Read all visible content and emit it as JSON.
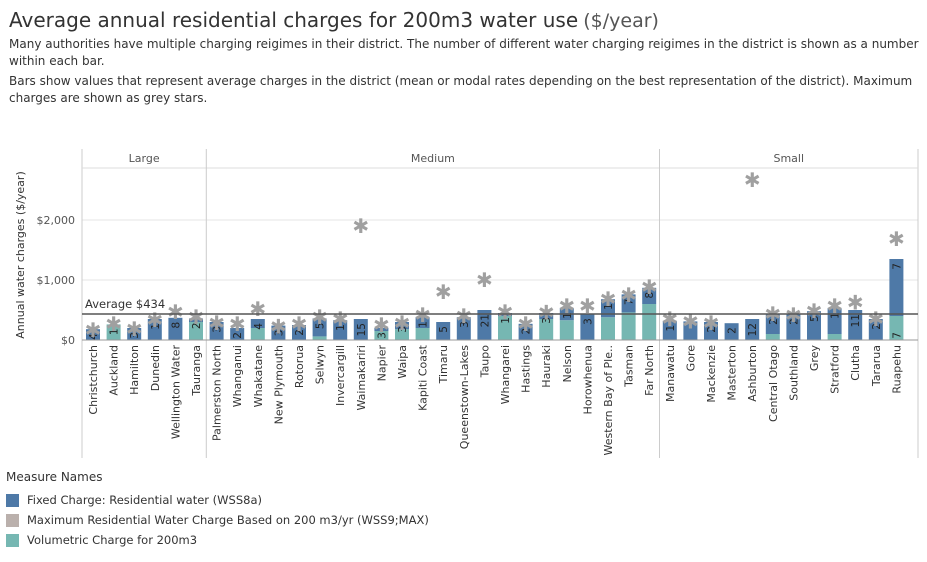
{
  "header": {
    "title": "Average annual residential charges for 200m3  water use",
    "title_unit": "($/year)",
    "subtitle_1": "Many authorities have multiple charging reigimes in their district. The number of different water charging reigimes in the district is shown as a number within each bar.",
    "subtitle_2": "Bars show values that represent average charges in the district (mean or modal rates depending on the best representation of the district). Maximum charges are shown as grey stars."
  },
  "legend": {
    "title": "Measure Names",
    "items": [
      {
        "label": "Fixed Charge: Residential water (WSS8a)",
        "color": "#4e79a7"
      },
      {
        "label": "Maximum Residential Water Charge Based on 200 m3/yr (WSS9;MAX)",
        "color": "#bab0ac"
      },
      {
        "label": "Volumetric Charge for 200m3",
        "color": "#76b7b2"
      }
    ]
  },
  "colors": {
    "fixed": "#4e79a7",
    "volumetric": "#76b7b2",
    "max_star": "#a0a0a0",
    "reference_line": "#555555",
    "grid": "#e6e6e6"
  },
  "chart_data": {
    "type": "bar",
    "stacked": true,
    "ylabel": "Annual water charges ($/year)",
    "ylim": [
      0,
      2800
    ],
    "yticks": [
      0,
      1000,
      2000
    ],
    "ytick_labels": [
      "$0",
      "$1,000",
      "$2,000"
    ],
    "reference_line": {
      "value": 434,
      "label": "Average $434"
    },
    "panels": [
      "Large",
      "Medium",
      "Small"
    ],
    "districts": [
      {
        "name": "Christchurch",
        "panel": "Large",
        "fixed": 180,
        "volumetric": 0,
        "max": 200,
        "regimes": "4"
      },
      {
        "name": "Auckland",
        "panel": "Large",
        "fixed": 0,
        "volumetric": 260,
        "max": 300,
        "regimes": "1"
      },
      {
        "name": "Hamilton",
        "panel": "Large",
        "fixed": 200,
        "volumetric": 0,
        "max": 220,
        "regimes": "3"
      },
      {
        "name": "Dunedin",
        "panel": "Large",
        "fixed": 350,
        "volumetric": 0,
        "max": 370,
        "regimes": "1"
      },
      {
        "name": "Wellington Water",
        "panel": "Large",
        "fixed": 370,
        "volumetric": 0,
        "max": 500,
        "regimes": "8"
      },
      {
        "name": "Tauranga",
        "panel": "Large",
        "fixed": 60,
        "volumetric": 300,
        "max": 420,
        "regimes": "2"
      },
      {
        "name": "Palmerston North",
        "panel": "Medium",
        "fixed": 300,
        "volumetric": 0,
        "max": 320,
        "regimes": "3"
      },
      {
        "name": "Whanganui",
        "panel": "Medium",
        "fixed": 200,
        "volumetric": 0,
        "max": 300,
        "regimes": "2"
      },
      {
        "name": "Whakatane",
        "panel": "Medium",
        "fixed": 150,
        "volumetric": 200,
        "max": 550,
        "regimes": "4"
      },
      {
        "name": "New Plymouth",
        "panel": "Medium",
        "fixed": 240,
        "volumetric": 0,
        "max": 260,
        "regimes": "3"
      },
      {
        "name": "Rotorua",
        "panel": "Medium",
        "fixed": 250,
        "volumetric": 0,
        "max": 300,
        "regimes": "2"
      },
      {
        "name": "Selwyn",
        "panel": "Medium",
        "fixed": 300,
        "volumetric": 60,
        "max": 420,
        "regimes": "5"
      },
      {
        "name": "Invercargill",
        "panel": "Medium",
        "fixed": 330,
        "volumetric": 0,
        "max": 380,
        "regimes": "1"
      },
      {
        "name": "Waimakariri",
        "panel": "Medium",
        "fixed": 350,
        "volumetric": 0,
        "max": 1930,
        "regimes": "15"
      },
      {
        "name": "Napier",
        "panel": "Medium",
        "fixed": 50,
        "volumetric": 150,
        "max": 280,
        "regimes": "3"
      },
      {
        "name": "Waipa",
        "panel": "Medium",
        "fixed": 120,
        "volumetric": 180,
        "max": 320,
        "regimes": "3"
      },
      {
        "name": "Kapiti Coast",
        "panel": "Medium",
        "fixed": 180,
        "volumetric": 200,
        "max": 450,
        "regimes": "1"
      },
      {
        "name": "Timaru",
        "panel": "Medium",
        "fixed": 300,
        "volumetric": 0,
        "max": 830,
        "regimes": "5"
      },
      {
        "name": "Queenstown-Lakes",
        "panel": "Medium",
        "fixed": 380,
        "volumetric": 0,
        "max": 430,
        "regimes": "3"
      },
      {
        "name": "Taupo",
        "panel": "Medium",
        "fixed": 500,
        "volumetric": 0,
        "max": 1030,
        "regimes": "21"
      },
      {
        "name": "Whangarei",
        "panel": "Medium",
        "fixed": 50,
        "volumetric": 400,
        "max": 500,
        "regimes": "1"
      },
      {
        "name": "Hastings",
        "panel": "Medium",
        "fixed": 270,
        "volumetric": 0,
        "max": 300,
        "regimes": "2"
      },
      {
        "name": "Hauraki",
        "panel": "Medium",
        "fixed": 100,
        "volumetric": 350,
        "max": 490,
        "regimes": "3"
      },
      {
        "name": "Nelson",
        "panel": "Medium",
        "fixed": 200,
        "volumetric": 330,
        "max": 600,
        "regimes": "1"
      },
      {
        "name": "Horowhenua",
        "panel": "Medium",
        "fixed": 430,
        "volumetric": 0,
        "max": 600,
        "regimes": "3"
      },
      {
        "name": "Western Bay of Ple..",
        "panel": "Medium",
        "fixed": 300,
        "volumetric": 380,
        "max": 720,
        "regimes": "1"
      },
      {
        "name": "Tasman",
        "panel": "Medium",
        "fixed": 300,
        "volumetric": 460,
        "max": 780,
        "regimes": "7"
      },
      {
        "name": "Far North",
        "panel": "Medium",
        "fixed": 270,
        "volumetric": 600,
        "max": 920,
        "regimes": "8"
      },
      {
        "name": "Manawatu",
        "panel": "Small",
        "fixed": 320,
        "volumetric": 0,
        "max": 380,
        "regimes": "1"
      },
      {
        "name": "Gore",
        "panel": "Small",
        "fixed": 310,
        "volumetric": 0,
        "max": 340,
        "regimes": ""
      },
      {
        "name": "Mackenzie",
        "panel": "Small",
        "fixed": 300,
        "volumetric": 0,
        "max": 320,
        "regimes": "2"
      },
      {
        "name": "Masterton",
        "panel": "Small",
        "fixed": 280,
        "volumetric": 0,
        "max": 0,
        "regimes": "2"
      },
      {
        "name": "Ashburton",
        "panel": "Small",
        "fixed": 350,
        "volumetric": 0,
        "max": 2700,
        "regimes": "12"
      },
      {
        "name": "Central Otago",
        "panel": "Small",
        "fixed": 330,
        "volumetric": 100,
        "max": 470,
        "regimes": "2"
      },
      {
        "name": "Southland",
        "panel": "Small",
        "fixed": 430,
        "volumetric": 0,
        "max": 450,
        "regimes": "2"
      },
      {
        "name": "Grey",
        "panel": "Small",
        "fixed": 480,
        "volumetric": 0,
        "max": 520,
        "regimes": "5"
      },
      {
        "name": "Stratford",
        "panel": "Small",
        "fixed": 430,
        "volumetric": 100,
        "max": 600,
        "regimes": "1"
      },
      {
        "name": "Clutha",
        "panel": "Small",
        "fixed": 500,
        "volumetric": 0,
        "max": 660,
        "regimes": "11"
      },
      {
        "name": "Tararua",
        "panel": "Small",
        "fixed": 350,
        "volumetric": 0,
        "max": 380,
        "regimes": "2"
      },
      {
        "name": "Ruapehu",
        "panel": "Small",
        "fixed": 950,
        "volumetric": 400,
        "max": 1720,
        "regimes": "7"
      }
    ],
    "ruapehu_volumetric_label": "7"
  }
}
